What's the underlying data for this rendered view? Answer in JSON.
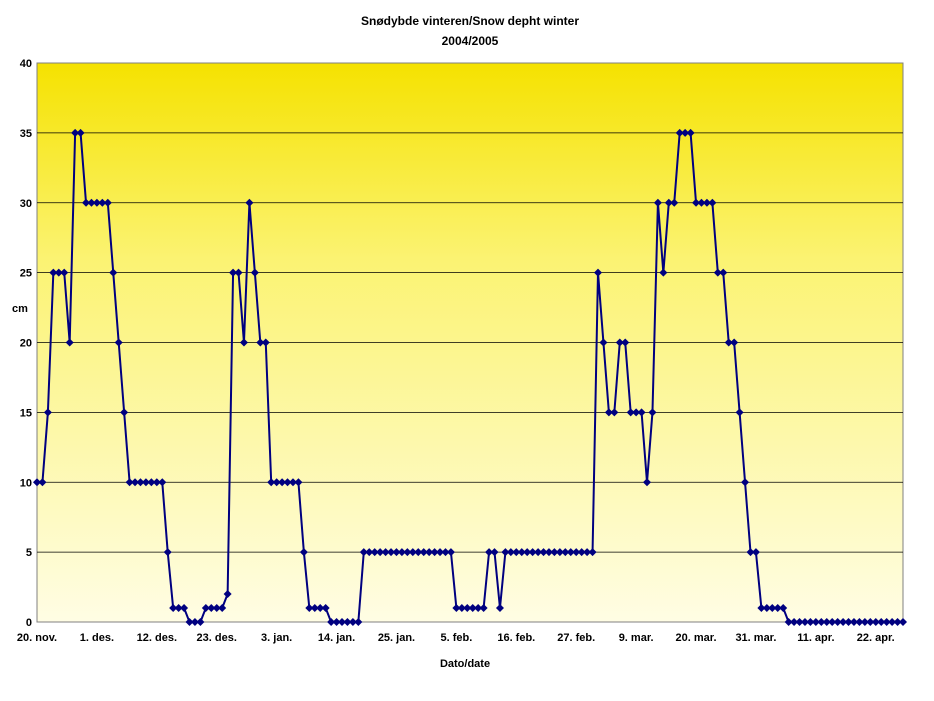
{
  "chart_data": {
    "type": "line",
    "title": "Snødybde vinteren/Snow depht winter",
    "subtitle": "2004/2005",
    "xlabel": "Dato/date",
    "ylabel": "cm",
    "ylim": [
      0,
      40
    ],
    "yticks": [
      "0",
      "5",
      "10",
      "15",
      "20",
      "25",
      "30",
      "35",
      "40"
    ],
    "xticks": [
      "20. nov.",
      "1. des.",
      "12. des.",
      "23. des.",
      "3. jan.",
      "14. jan.",
      "25. jan.",
      "5. feb.",
      "16. feb.",
      "27. feb.",
      "9. mar.",
      "20. mar.",
      "31. mar.",
      "11. apr.",
      "22. apr."
    ],
    "x_start": "20. nov.",
    "x_end": "23. apr.",
    "grid": "horizontal",
    "background": "yellow gradient",
    "series": [
      {
        "color": "#000080",
        "marker": "diamond",
        "values": [
          10,
          10,
          15,
          25,
          25,
          25,
          20,
          35,
          35,
          30,
          30,
          30,
          30,
          30,
          25,
          20,
          15,
          10,
          10,
          10,
          10,
          10,
          10,
          10,
          5,
          1,
          1,
          1,
          0,
          0,
          0,
          1,
          1,
          1,
          1,
          2,
          25,
          25,
          20,
          30,
          25,
          20,
          20,
          10,
          10,
          10,
          10,
          10,
          10,
          5,
          1,
          1,
          1,
          1,
          0,
          0,
          0,
          0,
          0,
          0,
          5,
          5,
          5,
          5,
          5,
          5,
          5,
          5,
          5,
          5,
          5,
          5,
          5,
          5,
          5,
          5,
          5,
          1,
          1,
          1,
          1,
          1,
          1,
          5,
          5,
          1,
          5,
          5,
          5,
          5,
          5,
          5,
          5,
          5,
          5,
          5,
          5,
          5,
          5,
          5,
          5,
          5,
          5,
          25,
          20,
          15,
          15,
          20,
          20,
          15,
          15,
          15,
          10,
          15,
          30,
          25,
          30,
          30,
          35,
          35,
          35,
          30,
          30,
          30,
          30,
          25,
          25,
          20,
          20,
          15,
          10,
          5,
          5,
          1,
          1,
          1,
          1,
          1,
          0,
          0,
          0,
          0,
          0,
          0,
          0,
          0,
          0,
          0,
          0,
          0,
          0,
          0,
          0,
          0,
          0,
          0,
          0,
          0,
          0,
          0
        ]
      }
    ]
  }
}
